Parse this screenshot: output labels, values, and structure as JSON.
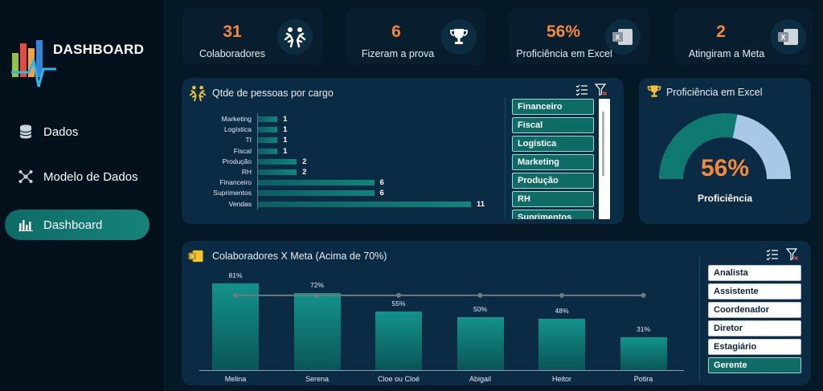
{
  "sidebar": {
    "logo_text": "DASHBOARD",
    "items": [
      {
        "label": "Dados",
        "icon": "database-icon"
      },
      {
        "label": "Modelo de Dados",
        "icon": "network-icon"
      },
      {
        "label": "Dashboard",
        "icon": "bar-chart-icon"
      }
    ],
    "active_index": 2
  },
  "kpis": [
    {
      "value": "31",
      "label": "Colaboradores",
      "icon": "people-icon"
    },
    {
      "value": "6",
      "label": "Fizeram a prova",
      "icon": "trophy-icon"
    },
    {
      "value": "56%",
      "label": "Proficiência em Excel",
      "icon": "excel-icon"
    },
    {
      "value": "2",
      "label": "Atingiram a Meta",
      "icon": "excel-icon"
    }
  ],
  "cargo_panel": {
    "title": "Qtde de pessoas por cargo",
    "slicer": [
      "Financeiro",
      "Fiscal",
      "Logística",
      "Marketing",
      "Produção",
      "RH",
      "Suprimentos"
    ]
  },
  "gauge_panel": {
    "title": "Proficiência em Excel",
    "value_label": "56%",
    "value": 56,
    "caption": "Proficiência"
  },
  "meta_panel": {
    "title": "Colaboradores X Meta (Acima de 70%)",
    "slicer": [
      "Analista",
      "Assistente",
      "Coordenador",
      "Diretor",
      "Estagiário",
      "Gerente"
    ],
    "selected": "Gerente"
  },
  "chart_data": [
    {
      "type": "bar",
      "orientation": "horizontal",
      "categories": [
        "Marketing",
        "Logística",
        "TI",
        "Fiscal",
        "Produção",
        "RH",
        "Financeiro",
        "Suprimentos",
        "Vendas"
      ],
      "values": [
        1,
        1,
        1,
        1,
        2,
        2,
        6,
        6,
        11
      ],
      "data_labels": [
        "1",
        "1",
        "1",
        "1",
        "2",
        "2",
        "6",
        "6",
        "11"
      ]
    },
    {
      "type": "bar",
      "categories": [
        "Melina",
        "Serena",
        "Cloe ou Cloé",
        "Abigail",
        "Heitor",
        "Potira"
      ],
      "values": [
        81,
        72,
        55,
        50,
        48,
        31
      ],
      "data_labels": [
        "81%",
        "72%",
        "55%",
        "50%",
        "48%",
        "31%"
      ],
      "target_line": 70,
      "ylim": [
        0,
        100
      ]
    }
  ],
  "colors": {
    "accent_orange": "#f4893b",
    "teal": "#13847c",
    "gauge_light": "#a9c8e8"
  }
}
